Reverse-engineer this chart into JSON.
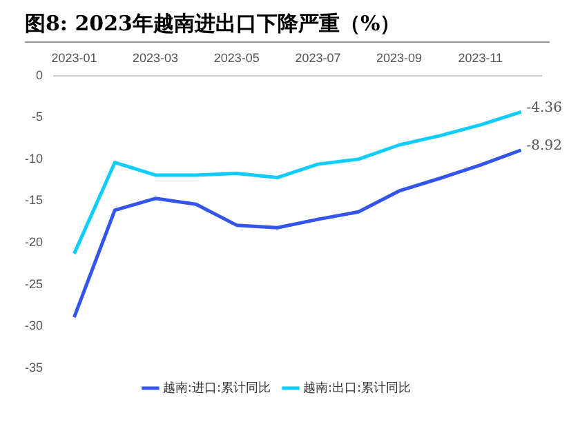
{
  "chart_data": {
    "type": "line",
    "title": "图8: 2023年越南进出口下降严重（%）",
    "categories": [
      "2023-01",
      null,
      "2023-03",
      null,
      "2023-05",
      null,
      "2023-07",
      null,
      "2023-09",
      null,
      "2023-11",
      null
    ],
    "series": [
      {
        "name": "越南:进口:累计同比",
        "color": "#3355ee",
        "values": [
          -28.9,
          -16.1,
          -14.7,
          -15.4,
          -17.9,
          -18.2,
          -17.2,
          -16.3,
          -13.8,
          -12.3,
          -10.7,
          -8.92
        ],
        "value_labels": [
          null,
          null,
          null,
          null,
          null,
          null,
          null,
          null,
          null,
          null,
          null,
          "-8.92"
        ]
      },
      {
        "name": "越南:出口:累计同比",
        "color": "#11ccff",
        "values": [
          -21.3,
          -10.4,
          -11.9,
          -11.9,
          -11.7,
          -12.2,
          -10.6,
          -10.0,
          -8.3,
          -7.2,
          -5.9,
          -4.36
        ],
        "value_labels": [
          null,
          null,
          null,
          null,
          null,
          null,
          null,
          null,
          null,
          null,
          null,
          "-4.36"
        ]
      }
    ],
    "ylim": [
      -35,
      0
    ],
    "yticks": [
      0,
      -5,
      -10,
      -15,
      -20,
      -25,
      -30,
      -35
    ],
    "grid": false,
    "legend": "bottom",
    "marker": "none",
    "line_style": "solid"
  }
}
